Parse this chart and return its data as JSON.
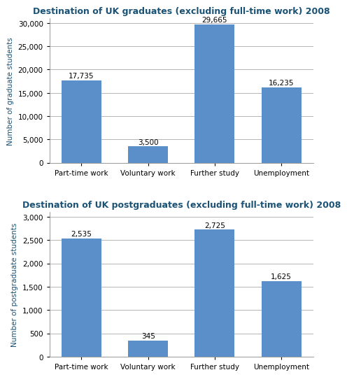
{
  "grad_title": "Destination of UK graduates (excluding full-time work) 2008",
  "postgrad_title": "Destination of UK postgraduates (excluding full-time work) 2008",
  "categories": [
    "Part-time work",
    "Voluntary work",
    "Further study",
    "Unemployment"
  ],
  "grad_values": [
    17735,
    3500,
    29665,
    16235
  ],
  "postgrad_values": [
    2535,
    345,
    2725,
    1625
  ],
  "grad_labels": [
    "17,735",
    "3,500",
    "29,665",
    "16,235"
  ],
  "postgrad_labels": [
    "2,535",
    "345",
    "2,725",
    "1,625"
  ],
  "bar_color": "#5B8FC9",
  "grad_ylabel": "Number of graduate students",
  "postgrad_ylabel": "Number of postgraduate students",
  "grad_ylim": [
    0,
    31000
  ],
  "postgrad_ylim": [
    0,
    3100
  ],
  "grad_yticks": [
    0,
    5000,
    10000,
    15000,
    20000,
    25000,
    30000
  ],
  "postgrad_yticks": [
    0,
    500,
    1000,
    1500,
    2000,
    2500,
    3000
  ],
  "title_color": "#1A5276",
  "ylabel_color": "#1A5276",
  "bg_color": "#FFFFFF",
  "grid_color": "#AAAAAA",
  "title_fontsize": 9,
  "ylabel_fontsize": 7.5,
  "tick_fontsize": 7.5,
  "bar_label_fontsize": 7.5
}
